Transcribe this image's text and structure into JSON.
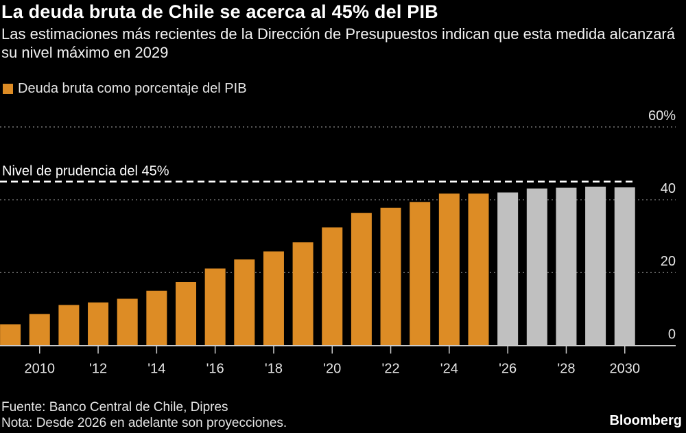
{
  "title": "La deuda bruta de Chile se acerca al 45% del PIB",
  "subtitle": "Las estimaciones más recientes de la Dirección de Presupuestos indican que esta medida alcanzará su nivel máximo en 2029",
  "footer": {
    "source": "Fuente: Banco Central de Chile, Dipres",
    "note": "Nota: Desde 2026 en adelante son proyecciones.",
    "logo": "Bloomberg"
  },
  "chart_data": {
    "type": "bar",
    "title": "La deuda bruta de Chile se acerca al 45% del PIB",
    "legend": [
      {
        "name": "Deuda bruta como porcentaje del PIB",
        "color": "#dd8c25"
      }
    ],
    "legend_placement": "top-left",
    "categories": [
      2009,
      2010,
      2011,
      2012,
      2013,
      2014,
      2015,
      2016,
      2017,
      2018,
      2019,
      2020,
      2021,
      2022,
      2023,
      2024,
      2025,
      2026,
      2027,
      2028,
      2029,
      2030
    ],
    "series": [
      {
        "name": "Deuda bruta como porcentaje del PIB",
        "values": [
          5.8,
          8.6,
          11.1,
          11.8,
          12.8,
          15.0,
          17.4,
          21.1,
          23.6,
          25.8,
          28.3,
          32.4,
          36.4,
          37.8,
          39.4,
          41.7,
          41.7,
          42.0,
          43.1,
          43.3,
          43.6,
          43.4
        ]
      }
    ],
    "projection_from": 2026,
    "colors": {
      "actual": "#dd8c25",
      "projection": "#c0c0c0"
    },
    "x_tick_labels": [
      {
        "year": 2010,
        "label": "2010"
      },
      {
        "year": 2012,
        "label": "'12"
      },
      {
        "year": 2014,
        "label": "'14"
      },
      {
        "year": 2016,
        "label": "'16"
      },
      {
        "year": 2018,
        "label": "'18"
      },
      {
        "year": 2020,
        "label": "'20"
      },
      {
        "year": 2022,
        "label": "'22"
      },
      {
        "year": 2024,
        "label": "'24"
      },
      {
        "year": 2026,
        "label": "'26"
      },
      {
        "year": 2028,
        "label": "'28"
      },
      {
        "year": 2030,
        "label": "2030"
      }
    ],
    "y_ticks": [
      {
        "value": 0,
        "label": "0"
      },
      {
        "value": 20,
        "label": "20"
      },
      {
        "value": 40,
        "label": "40"
      },
      {
        "value": 60,
        "label": "60%"
      }
    ],
    "ylim": [
      0,
      60
    ],
    "y_axis_side": "right",
    "grid": true,
    "reference_line": {
      "value": 45,
      "label": "Nivel de prudencia del 45%",
      "style": "dashed"
    }
  }
}
